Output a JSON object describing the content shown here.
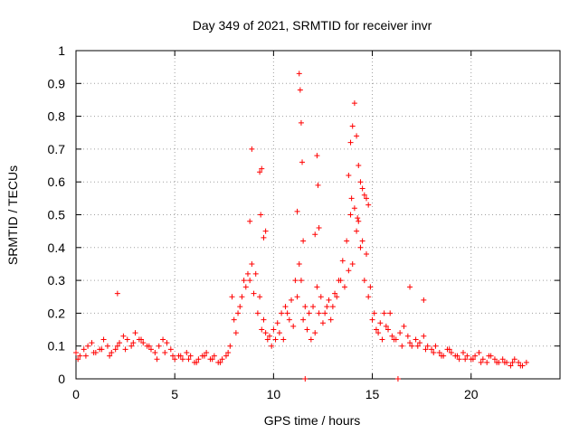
{
  "chart_data": {
    "type": "scatter",
    "title": "Day 349 of 2021, SRMTID for receiver invr",
    "xlabel": "GPS time / hours",
    "ylabel": "SRMTID / TECUs",
    "xlim": [
      0,
      24.5
    ],
    "ylim": [
      0,
      1
    ],
    "xticks": [
      0,
      5,
      10,
      15,
      20
    ],
    "xtick_labels": [
      "0",
      "5",
      "10",
      "15",
      "20"
    ],
    "yticks": [
      0,
      0.1,
      0.2,
      0.3,
      0.4,
      0.5,
      0.6,
      0.7,
      0.8,
      0.9,
      1
    ],
    "ytick_labels": [
      "0",
      "0.1",
      "0.2",
      "0.3",
      "0.4",
      "0.5",
      "0.6",
      "0.7",
      "0.8",
      "0.9",
      "1"
    ],
    "grid": true,
    "marker": "+",
    "color": "#ff0000",
    "series": [
      {
        "name": "SRMTID",
        "x": [
          0.0,
          0.2,
          0.4,
          0.6,
          0.8,
          1.0,
          1.2,
          1.4,
          1.6,
          1.8,
          2.0,
          2.2,
          2.4,
          2.6,
          2.8,
          3.0,
          3.2,
          3.4,
          3.6,
          3.8,
          4.0,
          4.2,
          4.4,
          4.6,
          4.8,
          5.0,
          5.2,
          5.4,
          5.6,
          5.8,
          6.0,
          6.2,
          6.4,
          6.6,
          6.8,
          7.0,
          7.2,
          7.4,
          7.6,
          7.8,
          8.0,
          8.2,
          8.4,
          8.6,
          8.8,
          9.0,
          9.2,
          9.4,
          9.6,
          9.8,
          10.0,
          10.2,
          10.4,
          10.6,
          10.8,
          11.0,
          11.2,
          11.4,
          11.6,
          11.8,
          12.0,
          12.2,
          12.4,
          12.6,
          12.8,
          13.0,
          13.2,
          13.4,
          13.6,
          13.8,
          14.0,
          14.2,
          14.4,
          14.6,
          14.8,
          15.0,
          15.2,
          15.4,
          15.6,
          15.8,
          16.0,
          16.2,
          16.4,
          16.6,
          16.8,
          17.0,
          17.2,
          17.4,
          17.6,
          17.8,
          18.0,
          18.2,
          18.4,
          18.6,
          18.8,
          19.0,
          19.2,
          19.4,
          19.6,
          19.8,
          20.0,
          20.2,
          20.4,
          20.6,
          20.8,
          21.0,
          21.2,
          21.4,
          21.6,
          21.8,
          22.0,
          22.2,
          22.4,
          22.6,
          22.8,
          0.1,
          0.5,
          0.9,
          1.3,
          1.7,
          2.1,
          2.5,
          2.9,
          3.3,
          3.7,
          4.1,
          4.5,
          4.9,
          5.3,
          5.7,
          6.1,
          6.5,
          6.9,
          7.3,
          7.7,
          8.1,
          8.3,
          8.5,
          8.7,
          8.9,
          9.1,
          9.3,
          9.5,
          9.7,
          9.9,
          10.1,
          10.3,
          10.5,
          10.7,
          10.9,
          11.1,
          11.3,
          11.5,
          11.7,
          11.9,
          12.1,
          12.3,
          12.5,
          12.7,
          12.9,
          13.1,
          13.3,
          13.5,
          13.7,
          13.9,
          14.1,
          14.3,
          14.5,
          14.7,
          14.9,
          15.1,
          15.3,
          15.5,
          15.7,
          15.9,
          16.1,
          16.5,
          16.9,
          17.3,
          17.7,
          18.1,
          18.5,
          18.9,
          19.3,
          19.7,
          20.1,
          20.5,
          20.9,
          21.3,
          21.7,
          22.1,
          22.5,
          8.9,
          9.4,
          11.3,
          11.35,
          11.4,
          11.45,
          12.2,
          12.25,
          13.9,
          14.0,
          14.1,
          14.2,
          14.4,
          14.6,
          14.7,
          9.3,
          9.35,
          9.6,
          11.2,
          12.1,
          13.8,
          14.3,
          14.5,
          14.8,
          8.8,
          9.5,
          11.5,
          12.3,
          13.95,
          14.25,
          11.6,
          16.3,
          2.1,
          7.9,
          16.9,
          17.6
        ],
        "y": [
          0.08,
          0.07,
          0.09,
          0.1,
          0.11,
          0.08,
          0.09,
          0.12,
          0.1,
          0.08,
          0.09,
          0.11,
          0.13,
          0.12,
          0.1,
          0.14,
          0.12,
          0.11,
          0.1,
          0.09,
          0.08,
          0.1,
          0.12,
          0.11,
          0.09,
          0.06,
          0.07,
          0.06,
          0.08,
          0.07,
          0.05,
          0.06,
          0.07,
          0.08,
          0.06,
          0.07,
          0.05,
          0.06,
          0.07,
          0.1,
          0.18,
          0.2,
          0.25,
          0.28,
          0.3,
          0.26,
          0.2,
          0.15,
          0.14,
          0.13,
          0.15,
          0.17,
          0.2,
          0.22,
          0.18,
          0.16,
          0.25,
          0.3,
          0.22,
          0.2,
          0.22,
          0.28,
          0.25,
          0.2,
          0.24,
          0.22,
          0.25,
          0.3,
          0.28,
          0.33,
          0.35,
          0.45,
          0.4,
          0.3,
          0.25,
          0.18,
          0.15,
          0.17,
          0.2,
          0.15,
          0.13,
          0.12,
          0.14,
          0.16,
          0.13,
          0.1,
          0.12,
          0.11,
          0.13,
          0.1,
          0.09,
          0.1,
          0.08,
          0.07,
          0.09,
          0.08,
          0.07,
          0.06,
          0.08,
          0.07,
          0.06,
          0.07,
          0.08,
          0.06,
          0.05,
          0.07,
          0.06,
          0.05,
          0.06,
          0.05,
          0.04,
          0.06,
          0.05,
          0.04,
          0.05,
          0.06,
          0.07,
          0.08,
          0.09,
          0.07,
          0.1,
          0.09,
          0.11,
          0.12,
          0.1,
          0.06,
          0.08,
          0.07,
          0.07,
          0.06,
          0.05,
          0.07,
          0.06,
          0.05,
          0.08,
          0.14,
          0.22,
          0.3,
          0.32,
          0.35,
          0.32,
          0.25,
          0.18,
          0.12,
          0.1,
          0.12,
          0.14,
          0.12,
          0.2,
          0.24,
          0.3,
          0.35,
          0.18,
          0.15,
          0.12,
          0.14,
          0.2,
          0.17,
          0.22,
          0.18,
          0.26,
          0.3,
          0.36,
          0.42,
          0.5,
          0.52,
          0.48,
          0.42,
          0.38,
          0.28,
          0.2,
          0.14,
          0.12,
          0.16,
          0.2,
          0.12,
          0.1,
          0.11,
          0.1,
          0.09,
          0.08,
          0.07,
          0.09,
          0.07,
          0.06,
          0.06,
          0.05,
          0.07,
          0.05,
          0.05,
          0.05,
          0.04,
          0.7,
          0.64,
          0.93,
          0.88,
          0.78,
          0.66,
          0.68,
          0.59,
          0.72,
          0.77,
          0.84,
          0.74,
          0.6,
          0.56,
          0.55,
          0.63,
          0.5,
          0.45,
          0.51,
          0.44,
          0.62,
          0.65,
          0.58,
          0.53,
          0.48,
          0.43,
          0.42,
          0.46,
          0.55,
          0.49,
          0.0,
          0.0,
          0.26,
          0.25,
          0.28,
          0.24
        ]
      }
    ]
  }
}
